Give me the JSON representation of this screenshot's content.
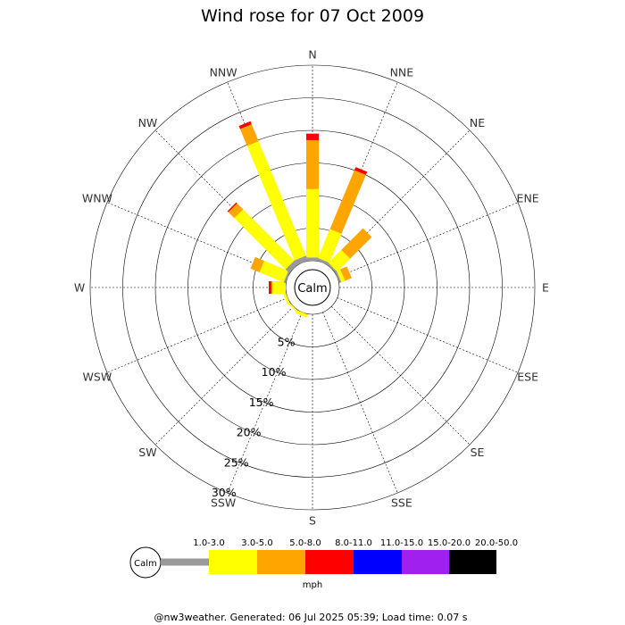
{
  "chart_data": {
    "type": "windrose",
    "title": "Wind rose for 07 Oct 2009",
    "calm_label": "Calm",
    "units": "mph",
    "footer": "@nw3weather. Generated: 06 Jul 2025 05:39; Load time: 0.07 s",
    "directions": [
      "N",
      "NNE",
      "NE",
      "ENE",
      "E",
      "ESE",
      "SE",
      "SSE",
      "S",
      "SSW",
      "SW",
      "WSW",
      "W",
      "WNW",
      "NW",
      "NNW"
    ],
    "radial_ticks": [
      5,
      10,
      15,
      20,
      25,
      30
    ],
    "radial_tick_labels": [
      "5%",
      "10%",
      "15%",
      "20%",
      "25%",
      "30%"
    ],
    "radial_max": 30,
    "speed_bins": [
      {
        "label": "1.0-3.0",
        "color": "#999999"
      },
      {
        "label": "3.0-5.0",
        "color": "#ffff00"
      },
      {
        "label": "5.0-8.0",
        "color": "#ffa500"
      },
      {
        "label": "8.0-11.0",
        "color": "#ff0000"
      },
      {
        "label": "11.0-15.0",
        "color": "#0000ff"
      },
      {
        "label": "15.0-20.0",
        "color": "#a020f0"
      },
      {
        "label": "20.0-50.0",
        "color": "#000000"
      }
    ],
    "series": [
      {
        "direction": "N",
        "values": [
          0.5,
          10.5,
          7.5,
          1.0,
          0,
          0,
          0
        ]
      },
      {
        "direction": "NNE",
        "values": [
          0.4,
          4.8,
          9.8,
          0.5,
          0,
          0,
          0
        ]
      },
      {
        "direction": "NE",
        "values": [
          0.3,
          2.8,
          4.7,
          0,
          0,
          0,
          0
        ]
      },
      {
        "direction": "ENE",
        "values": [
          0.3,
          0.6,
          1.1,
          0,
          0,
          0,
          0
        ]
      },
      {
        "direction": "E",
        "values": [
          0,
          0,
          0,
          0,
          0,
          0,
          0
        ]
      },
      {
        "direction": "ESE",
        "values": [
          0,
          0,
          0,
          0,
          0,
          0,
          0
        ]
      },
      {
        "direction": "SE",
        "values": [
          0,
          0,
          0,
          0,
          0,
          0,
          0
        ]
      },
      {
        "direction": "SSE",
        "values": [
          0,
          0,
          0,
          0,
          0,
          0,
          0
        ]
      },
      {
        "direction": "S",
        "values": [
          0,
          0,
          0,
          0,
          0,
          0,
          0
        ]
      },
      {
        "direction": "SSW",
        "values": [
          0,
          0.5,
          0,
          0,
          0,
          0,
          0
        ]
      },
      {
        "direction": "SW",
        "values": [
          0,
          0.3,
          0,
          0,
          0,
          0,
          0
        ]
      },
      {
        "direction": "WSW",
        "values": [
          0,
          0.4,
          0,
          0,
          0,
          0,
          0
        ]
      },
      {
        "direction": "W",
        "values": [
          0,
          2.0,
          0.2,
          0.4,
          0,
          0,
          0
        ]
      },
      {
        "direction": "WNW",
        "values": [
          0.3,
          4.0,
          1.5,
          0,
          0,
          0,
          0
        ]
      },
      {
        "direction": "NW",
        "values": [
          0.8,
          11.1,
          1.3,
          0.2,
          0,
          0,
          0
        ]
      },
      {
        "direction": "NNW",
        "values": [
          0.8,
          19.0,
          2.8,
          0.5,
          0,
          0,
          0
        ]
      }
    ]
  }
}
